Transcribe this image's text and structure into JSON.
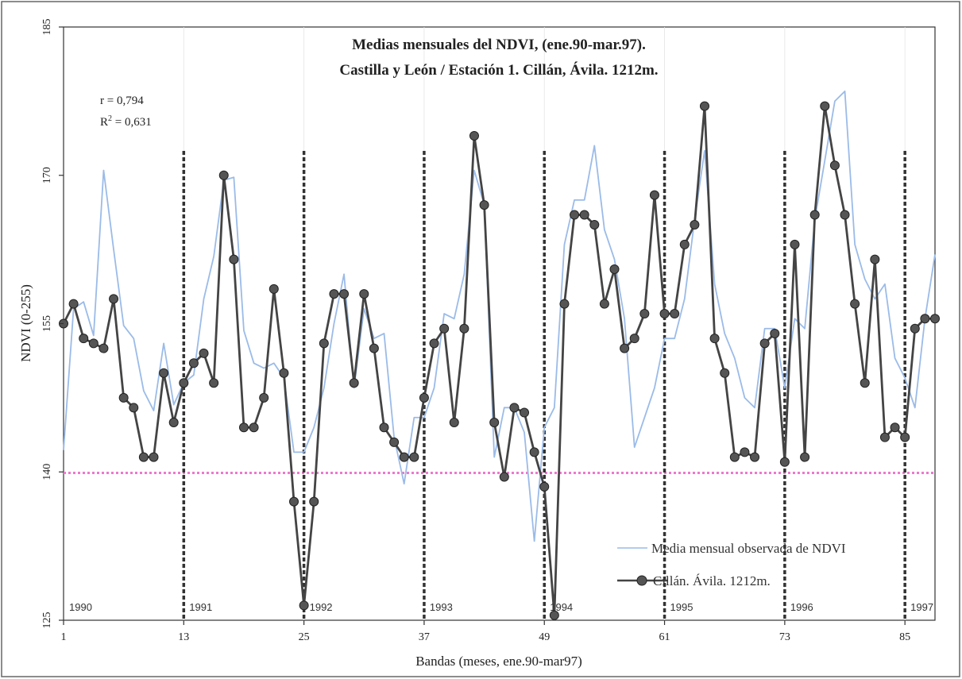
{
  "chart_data": {
    "type": "line",
    "title_line1": "Medias mensuales del NDVI, (ene.90-mar.97).",
    "title_line2": "Castilla y León / Estación 1. Cillán, Ávila. 1212m.",
    "xlabel": "Bandas (meses, ene.90-mar97)",
    "ylabel": "NDVI (0-255)",
    "xlim": [
      1,
      88
    ],
    "ylim": [
      125,
      185
    ],
    "x_ticks": [
      1,
      13,
      25,
      37,
      49,
      61,
      73,
      85
    ],
    "y_ticks": [
      125,
      140,
      155,
      170,
      185
    ],
    "annotations": {
      "r": "r = 0,794",
      "r2_prefix": "R",
      "r2_exp": "2",
      "r2_suffix": " = 0,631"
    },
    "year_dividers": [
      13,
      25,
      37,
      49,
      61,
      73,
      85
    ],
    "year_labels": [
      {
        "x": 1,
        "label": "1990"
      },
      {
        "x": 13,
        "label": "1991"
      },
      {
        "x": 25,
        "label": "1992"
      },
      {
        "x": 37,
        "label": "1993"
      },
      {
        "x": 49,
        "label": "1994"
      },
      {
        "x": 61,
        "label": "1995"
      },
      {
        "x": 73,
        "label": "1996"
      },
      {
        "x": 85,
        "label": "1997"
      }
    ],
    "reference_line": {
      "y": 139.9,
      "color": "#ee77cc"
    },
    "legend_position": "bottom-right",
    "series": [
      {
        "name": "Media mensual observada de NDVI",
        "color": "#9bbbe8",
        "x": [
          1,
          2,
          3,
          4,
          5,
          6,
          7,
          8,
          9,
          10,
          11,
          12,
          13,
          14,
          15,
          16,
          17,
          18,
          19,
          20,
          21,
          22,
          23,
          24,
          25,
          26,
          27,
          28,
          29,
          30,
          31,
          32,
          33,
          34,
          35,
          36,
          37,
          38,
          39,
          40,
          41,
          42,
          43,
          44,
          45,
          46,
          47,
          48,
          49,
          50,
          51,
          52,
          53,
          54,
          55,
          56,
          57,
          58,
          59,
          60,
          61,
          62,
          63,
          64,
          65,
          66,
          67,
          68,
          69,
          70,
          71,
          72,
          73,
          74,
          75,
          76,
          77,
          78,
          79,
          80,
          81,
          82,
          83,
          84,
          85,
          86,
          87,
          88
        ],
        "y": [
          142.2,
          156.5,
          157.2,
          153.8,
          170.5,
          162.5,
          154.8,
          153.5,
          148.2,
          146.2,
          153.0,
          146.8,
          149.0,
          149.8,
          157.5,
          161.8,
          169.5,
          169.8,
          154.3,
          151.0,
          150.5,
          151.0,
          149.5,
          142.0,
          142.0,
          144.5,
          148.5,
          155.0,
          160.0,
          148.5,
          156.5,
          153.5,
          154.0,
          143.5,
          138.8,
          145.5,
          145.5,
          148.5,
          156.0,
          155.5,
          160.0,
          170.5,
          167.0,
          141.5,
          146.5,
          146.5,
          144.0,
          133.0,
          144.5,
          146.5,
          163.0,
          167.5,
          167.5,
          173.0,
          164.5,
          161.5,
          155.5,
          142.5,
          145.5,
          148.5,
          153.5,
          153.5,
          157.5,
          165.5,
          172.5,
          159.0,
          154.0,
          151.5,
          147.5,
          146.5,
          154.5,
          154.5,
          148.5,
          155.5,
          154.5,
          165.5,
          171.5,
          177.5,
          178.5,
          163.0,
          159.5,
          157.5,
          159.0,
          151.5,
          149.5,
          146.5,
          155.5,
          162.0
        ]
      },
      {
        "name": "Cillán. Ávila. 1212m.",
        "color": "#444444",
        "x": [
          1,
          2,
          3,
          4,
          5,
          6,
          7,
          8,
          9,
          10,
          11,
          12,
          13,
          14,
          15,
          16,
          17,
          18,
          19,
          20,
          21,
          22,
          23,
          24,
          25,
          26,
          27,
          28,
          29,
          30,
          31,
          32,
          33,
          34,
          35,
          36,
          37,
          38,
          39,
          40,
          41,
          42,
          43,
          44,
          45,
          46,
          47,
          48,
          49,
          50,
          51,
          52,
          53,
          54,
          55,
          56,
          57,
          58,
          59,
          60,
          61,
          62,
          63,
          64,
          65,
          66,
          67,
          68,
          69,
          70,
          71,
          72,
          73,
          74,
          75,
          76,
          77,
          78,
          79,
          80,
          81,
          82,
          83,
          84,
          85,
          86,
          87,
          88
        ],
        "y": [
          155.0,
          157.0,
          153.5,
          153.0,
          152.5,
          157.5,
          147.5,
          146.5,
          141.5,
          141.5,
          150.0,
          145.0,
          149.0,
          151.0,
          152.0,
          149.0,
          170.0,
          161.5,
          144.5,
          144.5,
          147.5,
          158.5,
          150.0,
          137.0,
          126.5,
          137.0,
          153.0,
          158.0,
          158.0,
          149.0,
          158.0,
          152.5,
          144.5,
          143.0,
          141.5,
          141.5,
          147.5,
          153.0,
          154.5,
          145.0,
          154.5,
          174.0,
          167.0,
          145.0,
          139.5,
          146.5,
          146.0,
          142.0,
          138.5,
          125.5,
          157.0,
          166.0,
          166.0,
          165.0,
          157.0,
          160.5,
          152.5,
          153.5,
          156.0,
          168.0,
          156.0,
          156.0,
          163.0,
          165.0,
          177.0,
          153.5,
          150.0,
          141.5,
          142.0,
          141.5,
          153.0,
          154.0,
          141.0,
          163.0,
          141.5,
          166.0,
          177.0,
          171.0,
          166.0,
          157.0,
          149.0,
          161.5,
          143.5,
          144.5,
          143.5,
          154.5,
          155.5,
          155.5
        ]
      }
    ]
  }
}
